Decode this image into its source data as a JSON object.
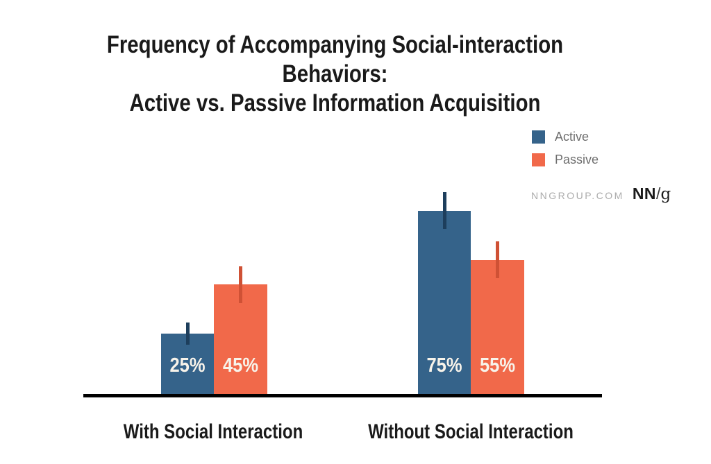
{
  "title": {
    "line1": "Frequency of Accompanying Social-interaction Behaviors:",
    "line2": "Active vs. Passive Information Acquisition"
  },
  "legend": {
    "items": [
      {
        "label": "Active",
        "color": "#35638a"
      },
      {
        "label": "Passive",
        "color": "#f1694a"
      }
    ]
  },
  "brand": {
    "site": "NNGROUP.COM",
    "logo_nn": "NN",
    "logo_slash": "/",
    "logo_g": "g"
  },
  "chart_data": {
    "type": "bar",
    "title": "Frequency of Accompanying Social-interaction Behaviors: Active vs. Passive Information Acquisition",
    "categories": [
      "With Social Interaction",
      "Without Social Interaction"
    ],
    "series": [
      {
        "name": "Active",
        "color": "#35638a",
        "error_color": "#1d3e5c",
        "values": [
          25,
          75
        ],
        "errors": [
          4.5,
          7.5
        ]
      },
      {
        "name": "Passive",
        "color": "#f1694a",
        "error_color": "#cf5135",
        "values": [
          45,
          55
        ],
        "errors": [
          7.5,
          7.5
        ]
      }
    ],
    "unit": "%",
    "value_labels": [
      "25%",
      "45%",
      "75%",
      "55%"
    ],
    "ylim": [
      0,
      100
    ],
    "grid": false,
    "y_axis_shown": false,
    "legend_position": "top-right",
    "colors": {
      "axis": "#000000",
      "value_label_text": "#f7f3ea",
      "title_text": "#1a1a1a",
      "legend_text": "#6e6e6e",
      "brand_text": "#ababab"
    }
  }
}
